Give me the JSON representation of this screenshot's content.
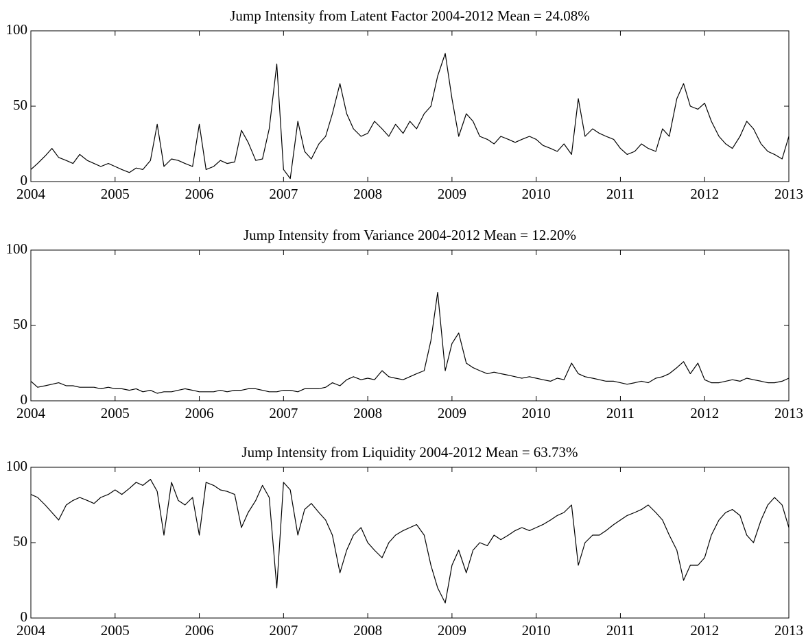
{
  "chart_data": [
    {
      "type": "line",
      "title": "Jump Intensity from Latent Factor 2004-2012 Mean = 24.08%",
      "xlim": [
        2004,
        2013
      ],
      "xticks": [
        2004,
        2005,
        2006,
        2007,
        2008,
        2009,
        2010,
        2011,
        2012,
        2013
      ],
      "ylim": [
        0,
        100
      ],
      "yticks": [
        0,
        50,
        100
      ],
      "color": "#000000",
      "x": [
        2004,
        2004.08,
        2004.17,
        2004.25,
        2004.33,
        2004.42,
        2004.5,
        2004.58,
        2004.67,
        2004.75,
        2004.83,
        2004.92,
        2005,
        2005.08,
        2005.17,
        2005.25,
        2005.33,
        2005.42,
        2005.5,
        2005.58,
        2005.67,
        2005.75,
        2005.83,
        2005.92,
        2006,
        2006.08,
        2006.17,
        2006.25,
        2006.33,
        2006.42,
        2006.5,
        2006.58,
        2006.67,
        2006.75,
        2006.83,
        2006.92,
        2007,
        2007.08,
        2007.17,
        2007.25,
        2007.33,
        2007.42,
        2007.5,
        2007.58,
        2007.67,
        2007.75,
        2007.83,
        2007.92,
        2008,
        2008.08,
        2008.17,
        2008.25,
        2008.33,
        2008.42,
        2008.5,
        2008.58,
        2008.67,
        2008.75,
        2008.83,
        2008.92,
        2009,
        2009.08,
        2009.17,
        2009.25,
        2009.33,
        2009.42,
        2009.5,
        2009.58,
        2009.67,
        2009.75,
        2009.83,
        2009.92,
        2010,
        2010.08,
        2010.17,
        2010.25,
        2010.33,
        2010.42,
        2010.5,
        2010.58,
        2010.67,
        2010.75,
        2010.83,
        2010.92,
        2011,
        2011.08,
        2011.17,
        2011.25,
        2011.33,
        2011.42,
        2011.5,
        2011.58,
        2011.67,
        2011.75,
        2011.83,
        2011.92,
        2012,
        2012.08,
        2012.17,
        2012.25,
        2012.33,
        2012.42,
        2012.5,
        2012.58,
        2012.67,
        2012.75,
        2012.83,
        2012.92,
        2013
      ],
      "values": [
        8,
        12,
        17,
        22,
        16,
        14,
        12,
        18,
        14,
        12,
        10,
        12,
        10,
        8,
        6,
        9,
        8,
        14,
        38,
        10,
        15,
        14,
        12,
        10,
        38,
        8,
        10,
        14,
        12,
        13,
        34,
        26,
        14,
        15,
        35,
        78,
        8,
        2,
        40,
        20,
        15,
        25,
        30,
        45,
        65,
        45,
        35,
        30,
        32,
        40,
        35,
        30,
        38,
        32,
        40,
        35,
        45,
        50,
        70,
        85,
        55,
        30,
        45,
        40,
        30,
        28,
        25,
        30,
        28,
        26,
        28,
        30,
        28,
        24,
        22,
        20,
        25,
        18,
        55,
        30,
        35,
        32,
        30,
        28,
        22,
        18,
        20,
        25,
        22,
        20,
        35,
        30,
        55,
        65,
        50,
        48,
        52,
        40,
        30,
        25,
        22,
        30,
        40,
        35,
        25,
        20,
        18,
        15,
        30
      ]
    },
    {
      "type": "line",
      "title": "Jump Intensity from Variance 2004-2012 Mean = 12.20%",
      "xlim": [
        2004,
        2013
      ],
      "xticks": [
        2004,
        2005,
        2006,
        2007,
        2008,
        2009,
        2010,
        2011,
        2012,
        2013
      ],
      "ylim": [
        0,
        100
      ],
      "yticks": [
        0,
        50,
        100
      ],
      "color": "#000000",
      "x": [
        2004,
        2004.08,
        2004.17,
        2004.25,
        2004.33,
        2004.42,
        2004.5,
        2004.58,
        2004.67,
        2004.75,
        2004.83,
        2004.92,
        2005,
        2005.08,
        2005.17,
        2005.25,
        2005.33,
        2005.42,
        2005.5,
        2005.58,
        2005.67,
        2005.75,
        2005.83,
        2005.92,
        2006,
        2006.08,
        2006.17,
        2006.25,
        2006.33,
        2006.42,
        2006.5,
        2006.58,
        2006.67,
        2006.75,
        2006.83,
        2006.92,
        2007,
        2007.08,
        2007.17,
        2007.25,
        2007.33,
        2007.42,
        2007.5,
        2007.58,
        2007.67,
        2007.75,
        2007.83,
        2007.92,
        2008,
        2008.08,
        2008.17,
        2008.25,
        2008.33,
        2008.42,
        2008.5,
        2008.58,
        2008.67,
        2008.75,
        2008.83,
        2008.92,
        2009,
        2009.08,
        2009.17,
        2009.25,
        2009.33,
        2009.42,
        2009.5,
        2009.58,
        2009.67,
        2009.75,
        2009.83,
        2009.92,
        2010,
        2010.08,
        2010.17,
        2010.25,
        2010.33,
        2010.42,
        2010.5,
        2010.58,
        2010.67,
        2010.75,
        2010.83,
        2010.92,
        2011,
        2011.08,
        2011.17,
        2011.25,
        2011.33,
        2011.42,
        2011.5,
        2011.58,
        2011.67,
        2011.75,
        2011.83,
        2011.92,
        2012,
        2012.08,
        2012.17,
        2012.25,
        2012.33,
        2012.42,
        2012.5,
        2012.58,
        2012.67,
        2012.75,
        2012.83,
        2012.92,
        2013
      ],
      "values": [
        13,
        9,
        10,
        11,
        12,
        10,
        10,
        9,
        9,
        9,
        8,
        9,
        8,
        8,
        7,
        8,
        6,
        7,
        5,
        6,
        6,
        7,
        8,
        7,
        6,
        6,
        6,
        7,
        6,
        7,
        7,
        8,
        8,
        7,
        6,
        6,
        7,
        7,
        6,
        8,
        8,
        8,
        9,
        12,
        10,
        14,
        16,
        14,
        15,
        14,
        20,
        16,
        15,
        14,
        16,
        18,
        20,
        40,
        72,
        20,
        38,
        45,
        25,
        22,
        20,
        18,
        19,
        18,
        17,
        16,
        15,
        16,
        15,
        14,
        13,
        15,
        14,
        25,
        18,
        16,
        15,
        14,
        13,
        13,
        12,
        11,
        12,
        13,
        12,
        15,
        16,
        18,
        22,
        26,
        18,
        25,
        14,
        12,
        12,
        13,
        14,
        13,
        15,
        14,
        13,
        12,
        12,
        13,
        15
      ]
    },
    {
      "type": "line",
      "title": "Jump Intensity from Liquidity 2004-2012 Mean = 63.73%",
      "xlim": [
        2004,
        2013
      ],
      "xticks": [
        2004,
        2005,
        2006,
        2007,
        2008,
        2009,
        2010,
        2011,
        2012,
        2013
      ],
      "ylim": [
        0,
        100
      ],
      "yticks": [
        0,
        50,
        100
      ],
      "color": "#000000",
      "x": [
        2004,
        2004.08,
        2004.17,
        2004.25,
        2004.33,
        2004.42,
        2004.5,
        2004.58,
        2004.67,
        2004.75,
        2004.83,
        2004.92,
        2005,
        2005.08,
        2005.17,
        2005.25,
        2005.33,
        2005.42,
        2005.5,
        2005.58,
        2005.67,
        2005.75,
        2005.83,
        2005.92,
        2006,
        2006.08,
        2006.17,
        2006.25,
        2006.33,
        2006.42,
        2006.5,
        2006.58,
        2006.67,
        2006.75,
        2006.83,
        2006.92,
        2007,
        2007.08,
        2007.17,
        2007.25,
        2007.33,
        2007.42,
        2007.5,
        2007.58,
        2007.67,
        2007.75,
        2007.83,
        2007.92,
        2008,
        2008.08,
        2008.17,
        2008.25,
        2008.33,
        2008.42,
        2008.5,
        2008.58,
        2008.67,
        2008.75,
        2008.83,
        2008.92,
        2009,
        2009.08,
        2009.17,
        2009.25,
        2009.33,
        2009.42,
        2009.5,
        2009.58,
        2009.67,
        2009.75,
        2009.83,
        2009.92,
        2010,
        2010.08,
        2010.17,
        2010.25,
        2010.33,
        2010.42,
        2010.5,
        2010.58,
        2010.67,
        2010.75,
        2010.83,
        2010.92,
        2011,
        2011.08,
        2011.17,
        2011.25,
        2011.33,
        2011.42,
        2011.5,
        2011.58,
        2011.67,
        2011.75,
        2011.83,
        2011.92,
        2012,
        2012.08,
        2012.17,
        2012.25,
        2012.33,
        2012.42,
        2012.5,
        2012.58,
        2012.67,
        2012.75,
        2012.83,
        2012.92,
        2013
      ],
      "values": [
        82,
        80,
        75,
        70,
        65,
        75,
        78,
        80,
        78,
        76,
        80,
        82,
        85,
        82,
        86,
        90,
        88,
        92,
        84,
        55,
        90,
        78,
        75,
        80,
        55,
        90,
        88,
        85,
        84,
        82,
        60,
        70,
        78,
        88,
        80,
        20,
        90,
        85,
        55,
        72,
        76,
        70,
        65,
        55,
        30,
        45,
        55,
        60,
        50,
        45,
        40,
        50,
        55,
        58,
        60,
        62,
        55,
        35,
        20,
        10,
        35,
        45,
        30,
        45,
        50,
        48,
        55,
        52,
        55,
        58,
        60,
        58,
        60,
        62,
        65,
        68,
        70,
        75,
        35,
        50,
        55,
        55,
        58,
        62,
        65,
        68,
        70,
        72,
        75,
        70,
        65,
        55,
        45,
        25,
        35,
        35,
        40,
        55,
        65,
        70,
        72,
        68,
        55,
        50,
        65,
        75,
        80,
        75,
        60
      ]
    }
  ]
}
